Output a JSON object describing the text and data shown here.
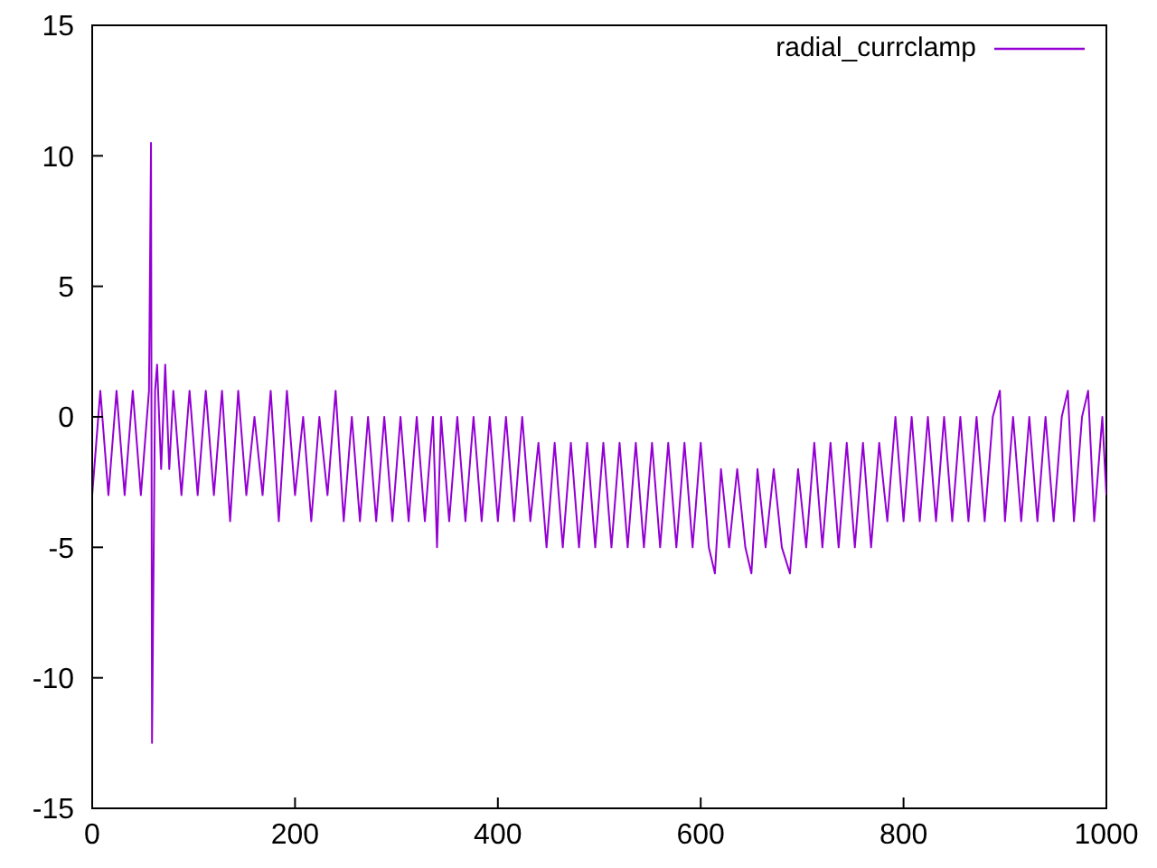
{
  "chart_data": {
    "type": "line",
    "xlim": [
      0,
      1000
    ],
    "ylim": [
      -15,
      15
    ],
    "xticks": [
      0,
      200,
      400,
      600,
      800,
      1000
    ],
    "yticks": [
      -15,
      -10,
      -5,
      0,
      5,
      10,
      15
    ],
    "grid": false,
    "legend": "top right",
    "marker": "none",
    "line_style": "solid",
    "series": [
      {
        "name": "radial_currclamp",
        "color": "#9400d3",
        "x": [
          0,
          8,
          16,
          24,
          32,
          40,
          48,
          56,
          58,
          59,
          62,
          64,
          68,
          72,
          76,
          80,
          88,
          96,
          104,
          112,
          120,
          128,
          136,
          144,
          152,
          160,
          168,
          176,
          184,
          192,
          200,
          208,
          216,
          224,
          232,
          240,
          248,
          256,
          264,
          272,
          280,
          288,
          296,
          304,
          312,
          320,
          328,
          336,
          340,
          344,
          352,
          360,
          368,
          376,
          384,
          392,
          400,
          408,
          416,
          424,
          432,
          440,
          448,
          456,
          464,
          472,
          480,
          488,
          496,
          504,
          512,
          520,
          528,
          536,
          544,
          552,
          560,
          568,
          576,
          584,
          592,
          600,
          608,
          614,
          620,
          628,
          636,
          644,
          650,
          656,
          664,
          672,
          680,
          688,
          696,
          704,
          712,
          720,
          728,
          736,
          744,
          752,
          760,
          768,
          776,
          784,
          792,
          800,
          808,
          816,
          824,
          832,
          840,
          848,
          856,
          864,
          872,
          880,
          888,
          895,
          900,
          908,
          916,
          924,
          932,
          940,
          948,
          956,
          962,
          968,
          976,
          982,
          988,
          996,
          1000
        ],
        "values": [
          -3,
          1,
          -3,
          1,
          -3,
          1,
          -3,
          1,
          10.5,
          -12.5,
          1,
          2,
          -2,
          2,
          -2,
          1,
          -3,
          1,
          -3,
          1,
          -3,
          1,
          -4,
          1,
          -3,
          0,
          -3,
          1,
          -4,
          1,
          -3,
          0,
          -4,
          0,
          -3,
          1,
          -4,
          0,
          -4,
          0,
          -4,
          0,
          -4,
          0,
          -4,
          0,
          -4,
          0,
          -5,
          0,
          -4,
          0,
          -4,
          0,
          -4,
          0,
          -4,
          0,
          -4,
          0,
          -4,
          -1,
          -5,
          -1,
          -5,
          -1,
          -5,
          -1,
          -5,
          -1,
          -5,
          -1,
          -5,
          -1,
          -5,
          -1,
          -5,
          -1,
          -5,
          -1,
          -5,
          -1,
          -5,
          -6,
          -2,
          -5,
          -2,
          -5,
          -6,
          -2,
          -5,
          -2,
          -5,
          -6,
          -2,
          -5,
          -1,
          -5,
          -1,
          -5,
          -1,
          -5,
          -1,
          -5,
          -1,
          -4,
          0,
          -4,
          0,
          -4,
          0,
          -4,
          0,
          -4,
          0,
          -4,
          0,
          -4,
          0,
          1,
          -4,
          0,
          -4,
          0,
          -4,
          0,
          -4,
          0,
          1,
          -4,
          0,
          1,
          -4,
          0,
          -3
        ]
      }
    ]
  }
}
